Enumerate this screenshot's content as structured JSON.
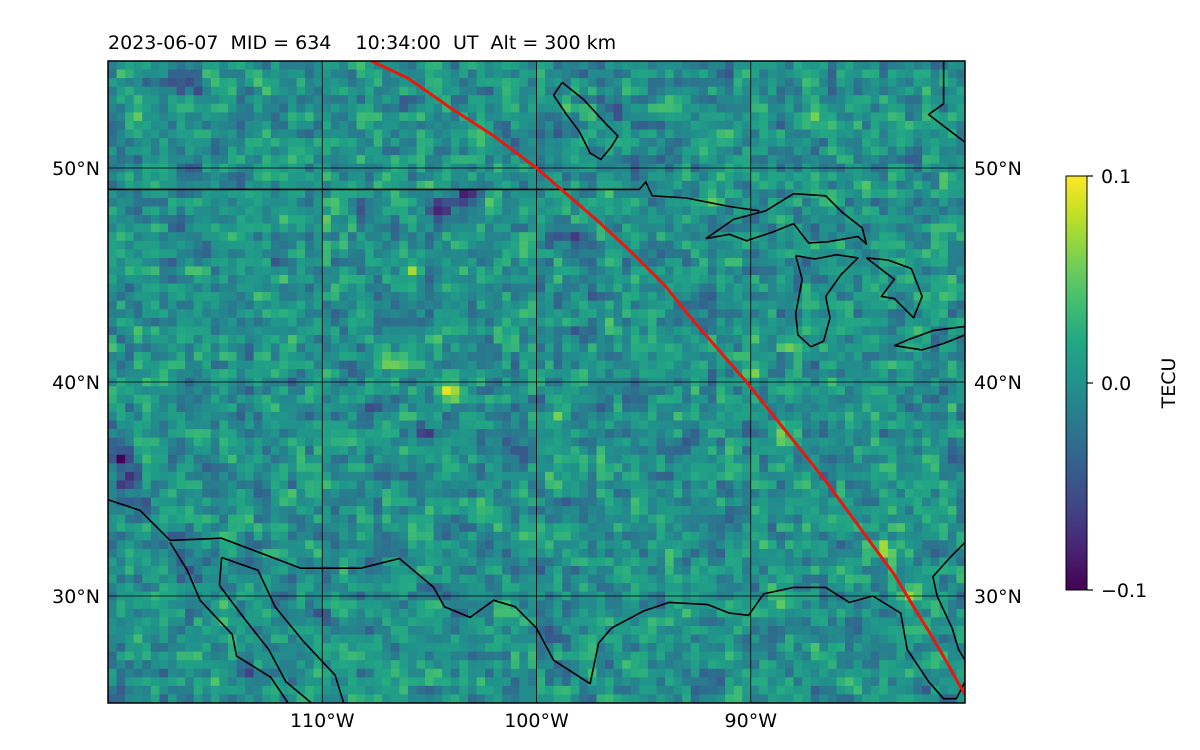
{
  "chart_data": {
    "type": "heatmap",
    "title": "2023-06-07  MID = 634    10:34:00  UT  Alt = 300 km",
    "map": {
      "lon_range": [
        -120,
        -80
      ],
      "lat_range": [
        25,
        55
      ],
      "gridlines": true,
      "coastlines": true
    },
    "lon_ticks": [
      {
        "value": -110,
        "label": "110°W"
      },
      {
        "value": -100,
        "label": "100°W"
      },
      {
        "value": -90,
        "label": "90°W"
      }
    ],
    "lat_ticks": [
      {
        "value": 30,
        "label": "30°N"
      },
      {
        "value": 40,
        "label": "40°N"
      },
      {
        "value": 50,
        "label": "50°N"
      }
    ],
    "colorbar": {
      "label": "TECU",
      "colormap": "viridis",
      "vmin": -0.1,
      "vmax": 0.1,
      "ticks": [
        {
          "value": 0.1,
          "label": "0.1"
        },
        {
          "value": 0.0,
          "label": "0.0"
        },
        {
          "value": -0.1,
          "label": "−0.1"
        }
      ]
    },
    "field": {
      "typical_value": 0.0,
      "anomalies": [
        {
          "lon": -103.5,
          "lat": 48.6,
          "value": -0.09
        },
        {
          "lon": -104.5,
          "lat": 48.0,
          "value": -0.08
        },
        {
          "lon": -98.5,
          "lat": 46.8,
          "value": -0.08
        },
        {
          "lon": -119.3,
          "lat": 36.3,
          "value": -0.09
        },
        {
          "lon": -119.0,
          "lat": 35.3,
          "value": -0.08
        },
        {
          "lon": -118.5,
          "lat": 34.3,
          "value": -0.07
        },
        {
          "lon": -104.0,
          "lat": 39.5,
          "value": 0.09
        },
        {
          "lon": -105.8,
          "lat": 45.0,
          "value": 0.07
        },
        {
          "lon": -106.8,
          "lat": 40.9,
          "value": 0.06
        },
        {
          "lon": -82.5,
          "lat": 30.1,
          "value": 0.08
        },
        {
          "lon": -84.0,
          "lat": 32.3,
          "value": 0.06
        },
        {
          "lon": -92.0,
          "lat": 48.4,
          "value": 0.05
        },
        {
          "lon": -88.0,
          "lat": 41.5,
          "value": 0.04
        },
        {
          "lon": -90.0,
          "lat": 40.5,
          "value": 0.04
        },
        {
          "lon": -99.0,
          "lat": 38.0,
          "value": 0.04
        },
        {
          "lon": -91.0,
          "lat": 51.5,
          "value": 0.04
        },
        {
          "lon": -82.5,
          "lat": 42.3,
          "value": 0.05
        },
        {
          "lon": -86.0,
          "lat": 38.5,
          "value": 0.03
        },
        {
          "lon": -88.5,
          "lat": 37.0,
          "value": 0.03
        },
        {
          "lon": -96.5,
          "lat": 42.5,
          "value": 0.03
        },
        {
          "lon": -113.0,
          "lat": 44.0,
          "value": 0.03
        },
        {
          "lon": -110.0,
          "lat": 47.5,
          "value": 0.03
        },
        {
          "lon": -95.5,
          "lat": 36.0,
          "value": 0.025
        },
        {
          "lon": -102.0,
          "lat": 33.5,
          "value": 0.025
        },
        {
          "lon": -110.0,
          "lat": 29.0,
          "value": -0.05
        },
        {
          "lon": -113.5,
          "lat": 26.5,
          "value": -0.05
        },
        {
          "lon": -116.0,
          "lat": 54.0,
          "value": -0.05
        },
        {
          "lon": -118.5,
          "lat": 50.5,
          "value": -0.04
        },
        {
          "lon": -101.0,
          "lat": 37.0,
          "value": -0.05
        },
        {
          "lon": -105.0,
          "lat": 37.5,
          "value": -0.04
        },
        {
          "lon": -108.0,
          "lat": 38.5,
          "value": -0.04
        },
        {
          "lon": -114.0,
          "lat": 38.0,
          "value": -0.04
        },
        {
          "lon": -95.0,
          "lat": 39.5,
          "value": -0.03
        },
        {
          "lon": -92.0,
          "lat": 44.0,
          "value": -0.03
        },
        {
          "lon": -87.0,
          "lat": 50.5,
          "value": -0.03
        },
        {
          "lon": -96.0,
          "lat": 52.5,
          "value": -0.03
        },
        {
          "lon": -106.0,
          "lat": 53.0,
          "value": -0.03
        },
        {
          "lon": -109.5,
          "lat": 33.0,
          "value": -0.03
        },
        {
          "lon": -99.0,
          "lat": 28.0,
          "value": -0.03
        },
        {
          "lon": -92.0,
          "lat": 26.0,
          "value": -0.03
        },
        {
          "lon": -116.0,
          "lat": 31.0,
          "value": -0.03
        }
      ]
    },
    "overlay": {
      "description": "red track",
      "color": "#e8190f",
      "points": [
        [
          -107.7,
          55.0
        ],
        [
          -106.0,
          54.2
        ],
        [
          -104.0,
          52.8
        ],
        [
          -102.0,
          51.5
        ],
        [
          -100.0,
          50.0
        ],
        [
          -98.5,
          48.7
        ],
        [
          -97.0,
          47.4
        ],
        [
          -95.5,
          46.0
        ],
        [
          -94.0,
          44.5
        ],
        [
          -92.8,
          43.0
        ],
        [
          -91.5,
          41.5
        ],
        [
          -90.2,
          40.0
        ],
        [
          -89.0,
          38.5
        ],
        [
          -87.8,
          37.0
        ],
        [
          -86.6,
          35.5
        ],
        [
          -85.5,
          34.0
        ],
        [
          -84.4,
          32.5
        ],
        [
          -83.3,
          31.0
        ],
        [
          -82.4,
          29.5
        ],
        [
          -81.6,
          28.2
        ],
        [
          -80.9,
          27.0
        ],
        [
          -80.3,
          25.9
        ],
        [
          -80.0,
          25.4
        ]
      ]
    },
    "borders": [
      {
        "name": "us-canada-border",
        "points": [
          [
            -120,
            49.0
          ],
          [
            -95.2,
            49.0
          ],
          [
            -94.9,
            49.35
          ],
          [
            -94.6,
            48.7
          ],
          [
            -93.0,
            48.6
          ],
          [
            -91.0,
            48.2
          ],
          [
            -89.6,
            48.0
          ]
        ]
      },
      {
        "name": "lake-superior",
        "points": [
          [
            -92.1,
            46.7
          ],
          [
            -91.0,
            46.9
          ],
          [
            -90.2,
            46.6
          ],
          [
            -89.0,
            47.0
          ],
          [
            -88.0,
            47.4
          ],
          [
            -87.3,
            46.5
          ],
          [
            -86.4,
            46.55
          ],
          [
            -85.0,
            46.8
          ],
          [
            -84.6,
            46.45
          ],
          [
            -84.8,
            47.2
          ],
          [
            -85.7,
            47.9
          ],
          [
            -86.5,
            48.7
          ],
          [
            -88.0,
            48.8
          ],
          [
            -89.3,
            48.0
          ],
          [
            -90.8,
            47.6
          ],
          [
            -92.1,
            46.7
          ]
        ]
      },
      {
        "name": "lake-michigan",
        "points": [
          [
            -87.9,
            45.9
          ],
          [
            -87.6,
            44.8
          ],
          [
            -87.9,
            43.2
          ],
          [
            -87.8,
            42.2
          ],
          [
            -87.2,
            41.65
          ],
          [
            -86.6,
            41.9
          ],
          [
            -86.3,
            43.0
          ],
          [
            -86.5,
            44.0
          ],
          [
            -85.8,
            45.0
          ],
          [
            -85.0,
            45.8
          ],
          [
            -86.0,
            45.95
          ],
          [
            -87.0,
            45.75
          ],
          [
            -87.9,
            45.9
          ]
        ]
      },
      {
        "name": "lake-huron",
        "points": [
          [
            -84.6,
            45.8
          ],
          [
            -83.6,
            45.7
          ],
          [
            -82.5,
            45.3
          ],
          [
            -82.0,
            44.0
          ],
          [
            -82.4,
            43.0
          ],
          [
            -83.3,
            43.9
          ],
          [
            -83.9,
            44.0
          ],
          [
            -83.3,
            44.8
          ],
          [
            -84.6,
            45.8
          ]
        ]
      },
      {
        "name": "lake-erie",
        "points": [
          [
            -83.3,
            41.7
          ],
          [
            -82.0,
            41.5
          ],
          [
            -81.0,
            41.8
          ],
          [
            -80.0,
            42.2
          ],
          [
            -80.0,
            42.6
          ],
          [
            -81.5,
            42.4
          ],
          [
            -82.6,
            42.0
          ],
          [
            -83.3,
            41.7
          ]
        ]
      },
      {
        "name": "hudson-bay-edge",
        "points": [
          [
            -81.0,
            55.0
          ],
          [
            -81.0,
            53.0
          ],
          [
            -81.7,
            52.5
          ],
          [
            -80.0,
            51.2
          ]
        ]
      },
      {
        "name": "lake-winnipeg",
        "points": [
          [
            -98.8,
            54.0
          ],
          [
            -97.8,
            53.2
          ],
          [
            -96.7,
            52.0
          ],
          [
            -96.2,
            51.5
          ],
          [
            -96.5,
            51.0
          ],
          [
            -97.0,
            50.4
          ],
          [
            -97.5,
            50.7
          ],
          [
            -98.0,
            51.7
          ],
          [
            -98.6,
            52.5
          ],
          [
            -99.2,
            53.4
          ],
          [
            -98.8,
            54.0
          ]
        ]
      },
      {
        "name": "us-mexico-border-and-gulf",
        "points": [
          [
            -120,
            34.5
          ],
          [
            -118.5,
            34.0
          ],
          [
            -117.1,
            32.6
          ],
          [
            -114.7,
            32.7
          ],
          [
            -111.0,
            31.3
          ],
          [
            -108.2,
            31.3
          ],
          [
            -106.4,
            31.75
          ],
          [
            -104.8,
            30.4
          ],
          [
            -104.3,
            29.5
          ],
          [
            -103.1,
            29.0
          ],
          [
            -102.0,
            29.8
          ],
          [
            -101.0,
            29.5
          ],
          [
            -100.0,
            28.5
          ],
          [
            -99.2,
            27.0
          ],
          [
            -97.5,
            25.9
          ],
          [
            -97.1,
            27.8
          ],
          [
            -96.5,
            28.5
          ],
          [
            -95.0,
            29.3
          ],
          [
            -93.8,
            29.7
          ],
          [
            -92.0,
            29.6
          ],
          [
            -91.0,
            29.2
          ],
          [
            -90.1,
            29.1
          ],
          [
            -89.4,
            30.1
          ],
          [
            -88.0,
            30.4
          ],
          [
            -86.5,
            30.4
          ],
          [
            -85.4,
            29.7
          ],
          [
            -84.3,
            30.0
          ],
          [
            -83.0,
            29.2
          ],
          [
            -82.7,
            27.5
          ],
          [
            -81.7,
            26.0
          ],
          [
            -81.0,
            25.2
          ],
          [
            -80.4,
            25.2
          ],
          [
            -80.0,
            26.0
          ],
          [
            -80.0,
            27.0
          ]
        ]
      },
      {
        "name": "florida-atlantic-coast",
        "points": [
          [
            -80.0,
            27.0
          ],
          [
            -80.3,
            27.5
          ],
          [
            -80.6,
            28.5
          ],
          [
            -81.3,
            30.0
          ],
          [
            -81.5,
            30.9
          ],
          [
            -80.7,
            31.8
          ],
          [
            -80.0,
            32.5
          ]
        ]
      },
      {
        "name": "baja-california",
        "points": [
          [
            -117.1,
            32.5
          ],
          [
            -116.3,
            31.2
          ],
          [
            -115.7,
            29.8
          ],
          [
            -114.2,
            28.2
          ],
          [
            -114.0,
            27.2
          ],
          [
            -112.4,
            26.2
          ],
          [
            -111.6,
            25.0
          ]
        ]
      },
      {
        "name": "gulf-of-california-east",
        "points": [
          [
            -114.7,
            31.8
          ],
          [
            -113.0,
            31.2
          ],
          [
            -112.2,
            29.5
          ],
          [
            -110.9,
            27.9
          ],
          [
            -109.4,
            26.3
          ],
          [
            -109.0,
            25.0
          ]
        ]
      },
      {
        "name": "gulf-of-california-west",
        "points": [
          [
            -114.7,
            31.8
          ],
          [
            -114.8,
            30.5
          ],
          [
            -113.6,
            28.9
          ],
          [
            -112.5,
            27.5
          ],
          [
            -111.7,
            26.0
          ],
          [
            -110.5,
            25.0
          ]
        ]
      }
    ]
  }
}
